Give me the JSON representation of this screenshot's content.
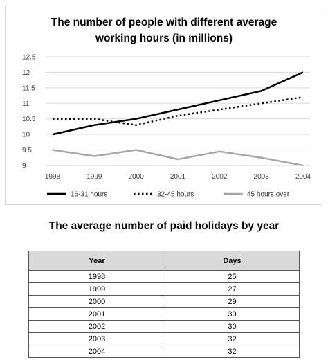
{
  "chart_data": {
    "type": "line",
    "title_line1": "The number of people with different average",
    "title_line2": "working hours (in millions)",
    "categories": [
      "1998",
      "1999",
      "2000",
      "2001",
      "2002",
      "2003",
      "2004"
    ],
    "y_ticks": [
      "12.5",
      "12",
      "11.5",
      "11",
      "10.5",
      "10",
      "9.5",
      "9"
    ],
    "ylim": [
      9,
      12.5
    ],
    "grid": true,
    "legend_position": "bottom",
    "series": [
      {
        "name": "16-31 hours",
        "values": [
          10.0,
          10.3,
          10.5,
          10.8,
          11.1,
          11.4,
          12.0
        ],
        "color": "#000000",
        "style": "solid"
      },
      {
        "name": "32-45 hours",
        "values": [
          10.5,
          10.5,
          10.3,
          10.6,
          10.8,
          11.0,
          11.2
        ],
        "color": "#000000",
        "style": "dotted"
      },
      {
        "name": "45 hours over",
        "values": [
          9.5,
          9.3,
          9.5,
          9.2,
          9.45,
          9.25,
          9.0
        ],
        "color": "#a6a6a6",
        "style": "solid"
      }
    ]
  },
  "table": {
    "title": "The average number of paid holidays by year",
    "headers": [
      "Year",
      "Days"
    ],
    "rows": [
      [
        "1998",
        "25"
      ],
      [
        "1999",
        "27"
      ],
      [
        "2000",
        "29"
      ],
      [
        "2001",
        "30"
      ],
      [
        "2002",
        "30"
      ],
      [
        "2003",
        "32"
      ],
      [
        "2004",
        "32"
      ]
    ]
  }
}
